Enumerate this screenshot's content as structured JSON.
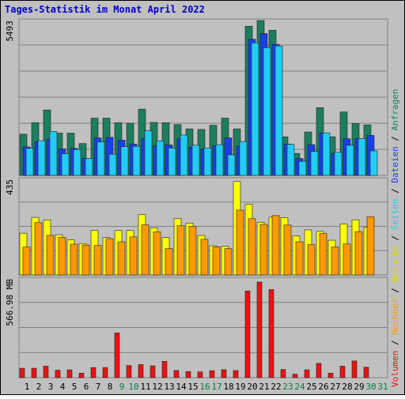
{
  "chart_data": {
    "title": "Tages-Statistik im Monat April 2022",
    "categories": [
      "1",
      "2",
      "3",
      "4",
      "5",
      "6",
      "7",
      "8",
      "9",
      "10",
      "11",
      "12",
      "13",
      "14",
      "15",
      "16",
      "17",
      "18",
      "19",
      "20",
      "21",
      "22",
      "23",
      "24",
      "25",
      "26",
      "27",
      "28",
      "29",
      "30",
      "31"
    ],
    "weekend_days": [
      "9",
      "10",
      "16",
      "17",
      "23",
      "24",
      "30",
      "31"
    ],
    "weekend_color": "#008040",
    "weekday_color": "#000000",
    "panels": [
      {
        "type": "bar",
        "scale_label": "5493",
        "ylim": [
          0,
          5493
        ],
        "series": [
          {
            "name": "Anfragen",
            "color": "#1c7e5f",
            "values": [
              1460,
              1870,
              2320,
              1500,
              1500,
              1130,
              2030,
              2030,
              1870,
              1850,
              2350,
              1880,
              1870,
              1800,
              1650,
              1630,
              1780,
              2030,
              1650,
              5290,
              5493,
              5150,
              1370,
              780,
              1540,
              2400,
              1370,
              2250,
              1840,
              1790,
              0
            ]
          },
          {
            "name": "Dateien",
            "color": "#1840e8",
            "values": [
              1010,
              1200,
              1280,
              940,
              960,
              600,
              1330,
              1350,
              1250,
              1110,
              1310,
              1050,
              1080,
              1300,
              1000,
              940,
              1060,
              1330,
              1040,
              4830,
              5030,
              4650,
              1110,
              600,
              1090,
              1500,
              780,
              1300,
              1300,
              1420,
              0
            ]
          },
          {
            "name": "Seiten",
            "color": "#22ccf5",
            "values": [
              960,
              1230,
              1560,
              770,
              920,
              600,
              1190,
              750,
              1020,
              1030,
              1580,
              1220,
              970,
              1430,
              1070,
              970,
              1090,
              730,
              1200,
              4700,
              4530,
              4590,
              1100,
              500,
              850,
              1510,
              820,
              1070,
              1300,
              870,
              0
            ]
          }
        ]
      },
      {
        "type": "bar",
        "scale_label": "435",
        "ylim": [
          0,
          435
        ],
        "series": [
          {
            "name": "Besuche",
            "color": "#ffff00",
            "values": [
              190,
              262,
              250,
              183,
              160,
              143,
              203,
              170,
              202,
              202,
              275,
              214,
              170,
              256,
              236,
              180,
              133,
              130,
              425,
              321,
              240,
              263,
              260,
              178,
              205,
              198,
              158,
              232,
              251,
              218,
              0
            ]
          },
          {
            "name": "Rechner",
            "color": "#ff9900",
            "values": [
              127,
              238,
              180,
              171,
              140,
              136,
              134,
              165,
              151,
              173,
              228,
              196,
              120,
              224,
              221,
              162,
              128,
              120,
              295,
              256,
              230,
              270,
              227,
              151,
              138,
              189,
              127,
              141,
              197,
              265,
              0
            ]
          }
        ]
      },
      {
        "type": "bar",
        "scale_label": "566.98 MB",
        "ylim": [
          0,
          566.98
        ],
        "series": [
          {
            "name": "Volumen",
            "color": "#ee1111",
            "values": [
              54,
              54,
              66,
              43,
              45,
              26,
              58,
              58,
              257,
              70,
              75,
              68,
              94,
              41,
              35,
              33,
              40,
              46,
              41,
              498,
              549,
              506,
              47,
              20,
              45,
              82,
              26,
              66,
              96,
              60,
              0
            ]
          }
        ]
      }
    ],
    "legend_right": [
      {
        "name": "Volumen",
        "color": "#ee1111"
      },
      {
        "name": "Rechner",
        "color": "#ff9900"
      },
      {
        "name": "Besuche",
        "color": "#dddd00"
      },
      {
        "name": "Seiten",
        "color": "#22ccf5"
      },
      {
        "name": "Dateien",
        "color": "#1840e8"
      },
      {
        "name": "Anfragen",
        "color": "#1c7e5f"
      }
    ],
    "legend_separator": " / ",
    "grid": true,
    "legend_placement": "right"
  }
}
